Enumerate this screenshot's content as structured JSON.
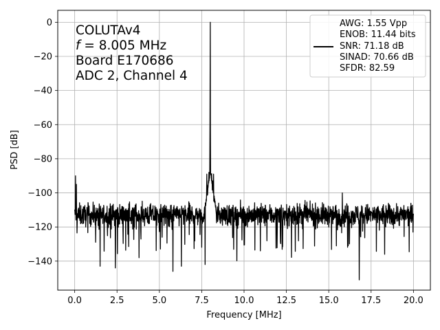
{
  "chart_data": {
    "type": "line",
    "xlabel": "Frequency [MHz]",
    "ylabel": "PSD [dB]",
    "xlim": [
      -1.0,
      21.0
    ],
    "ylim": [
      -157,
      7
    ],
    "x_ticks": [
      0.0,
      2.5,
      5.0,
      7.5,
      10.0,
      12.5,
      15.0,
      17.5,
      20.0
    ],
    "x_tick_labels": [
      "0.0",
      "2.5",
      "5.0",
      "7.5",
      "10.0",
      "12.5",
      "15.0",
      "17.5",
      "20.0"
    ],
    "y_ticks": [
      0,
      -20,
      -40,
      -60,
      -80,
      -100,
      -120,
      -140
    ],
    "y_tick_labels": [
      "0",
      "−20",
      "−40",
      "−60",
      "−80",
      "−100",
      "−120",
      "−140"
    ],
    "grid": true,
    "annotation": {
      "line1": "COLUTAv4",
      "line2_var": "f",
      "line2_rest": " = 8.005 MHz",
      "line3": "Board E170686",
      "line4": "ADC 2, Channel 4"
    },
    "legend": {
      "placement": "top-right",
      "lines": [
        "AWG: 1.55 Vpp",
        "ENOB: 11.44 bits",
        "SNR: 71.18 dB",
        "SINAD: 70.66 dB",
        "SFDR: 82.59"
      ]
    },
    "series": [
      {
        "color": "#000000",
        "fundamental": {
          "x": 8.005,
          "y": 0
        },
        "noise_floor_db": -113,
        "x_range": [
          0.0,
          20.0
        ],
        "features": [
          {
            "x": 0.05,
            "y": -90
          },
          {
            "x": 0.1,
            "y": -95
          },
          {
            "x": 1.5,
            "y": -143
          },
          {
            "x": 2.4,
            "y": -144
          },
          {
            "x": 3.8,
            "y": -138
          },
          {
            "x": 5.8,
            "y": -146
          },
          {
            "x": 6.3,
            "y": -143
          },
          {
            "x": 7.7,
            "y": -142
          },
          {
            "x": 7.8,
            "y": -89
          },
          {
            "x": 8.2,
            "y": -89
          },
          {
            "x": 15.8,
            "y": -100
          },
          {
            "x": 16.8,
            "y": -151
          },
          {
            "x": 18.3,
            "y": -136
          }
        ]
      }
    ]
  }
}
